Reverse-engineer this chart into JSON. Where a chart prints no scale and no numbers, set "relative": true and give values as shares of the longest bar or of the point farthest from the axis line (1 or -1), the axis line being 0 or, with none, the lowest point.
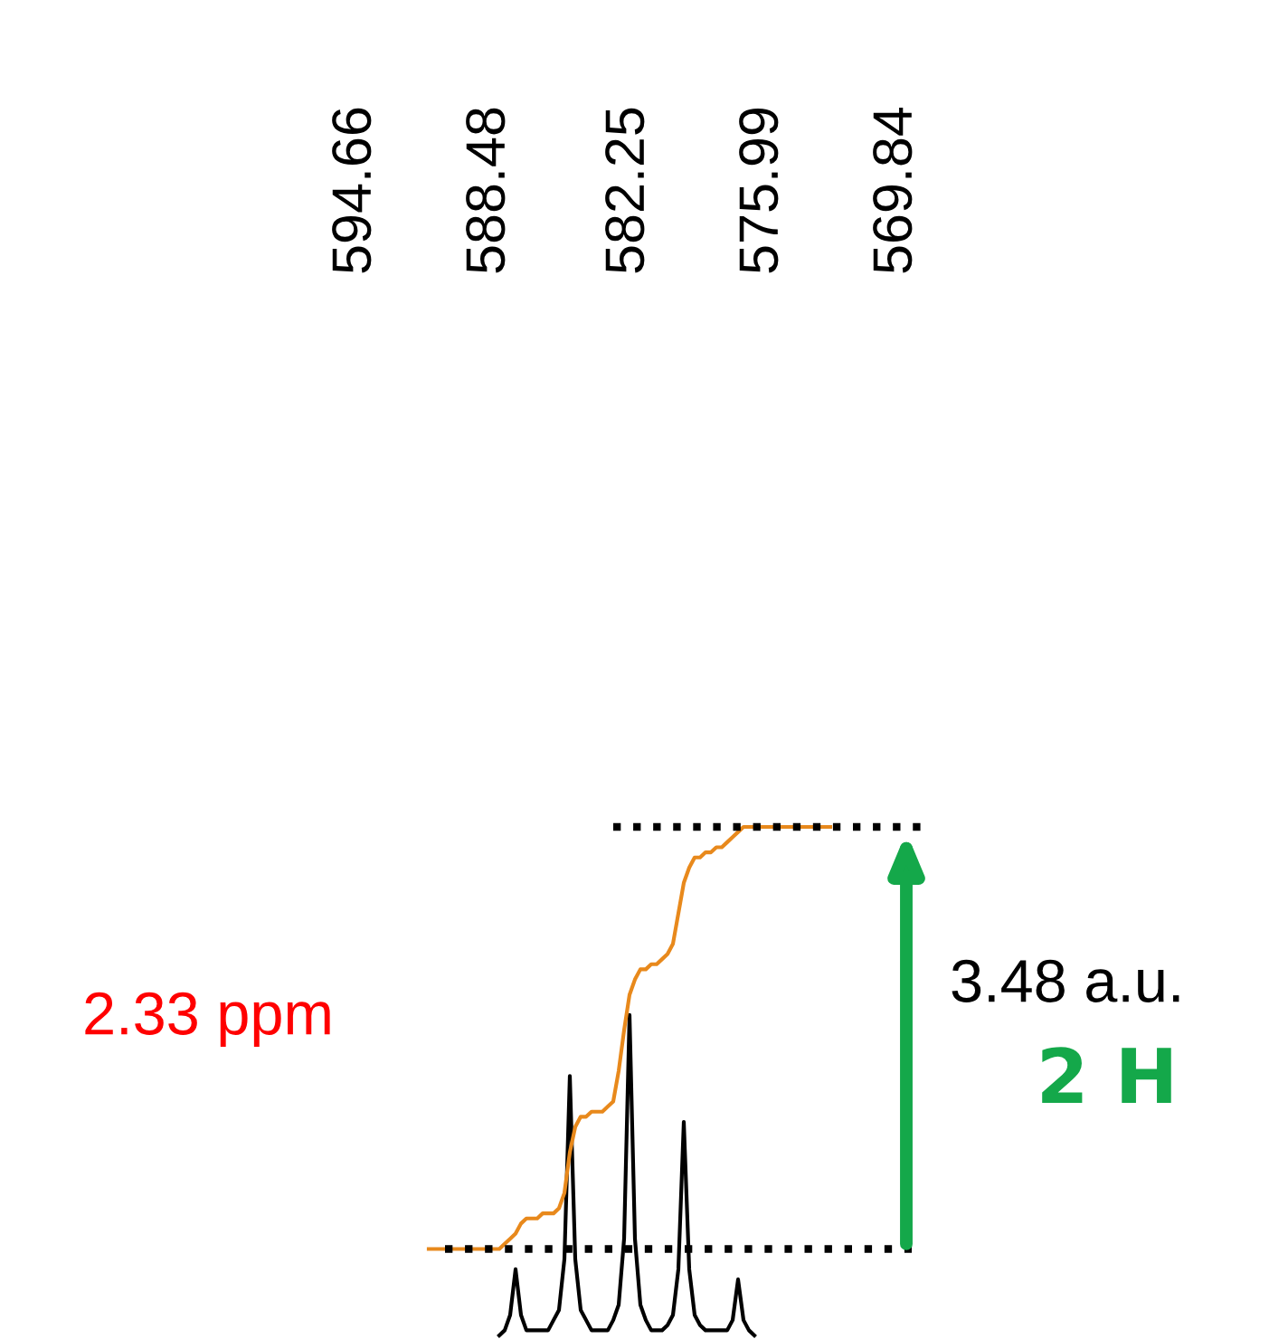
{
  "chart_data": {
    "type": "line",
    "relative": true,
    "categories": [
      null,
      null,
      null,
      null,
      null,
      null,
      null,
      null,
      null,
      null,
      null,
      null,
      null,
      null,
      null,
      null,
      null,
      null,
      null,
      null,
      null,
      null,
      null,
      null,
      null,
      null,
      null,
      null,
      null,
      null,
      null,
      null,
      null,
      null,
      null,
      null,
      null,
      null,
      null,
      null,
      null,
      null,
      null,
      null,
      null,
      null,
      null,
      null,
      null,
      null,
      null,
      null,
      null,
      null,
      null,
      null,
      null,
      null,
      null,
      null,
      null,
      null,
      null,
      null,
      null,
      null,
      null,
      null,
      null,
      null,
      null,
      null,
      null,
      null,
      null,
      null,
      null,
      null,
      null,
      null,
      null,
      null,
      null,
      null,
      null,
      null,
      null,
      null,
      null,
      null,
      null,
      null,
      null
    ],
    "series": [
      {
        "color": "#000000",
        "values": [
          null,
          null,
          null,
          null,
          null,
          null,
          null,
          null,
          null,
          null,
          null,
          null,
          null,
          0,
          0.01,
          0.04,
          0.13,
          0.04,
          0.01,
          0.01,
          0.01,
          0.01,
          0.01,
          0.03,
          0.05,
          0.15,
          0.51,
          0.15,
          0.05,
          0.03,
          0.01,
          0.01,
          0.01,
          0.01,
          0.03,
          0.06,
          0.19,
          0.63,
          0.19,
          0.06,
          0.03,
          0.01,
          0.01,
          0.01,
          0.02,
          0.04,
          0.13,
          0.42,
          0.13,
          0.04,
          0.02,
          0.01,
          0.01,
          0.01,
          0.01,
          0.01,
          0.03,
          0.11,
          0.03,
          0.01,
          0,
          null,
          null,
          null,
          null,
          null,
          null,
          null,
          null,
          null,
          null,
          null,
          null,
          null,
          null,
          null,
          null,
          null,
          null,
          null,
          null,
          null,
          null,
          null,
          null,
          null,
          null,
          null,
          null,
          null,
          null,
          null,
          null
        ]
      },
      {
        "color": "#e8891c",
        "values": [
          0.17,
          0.17,
          0.17,
          0.17,
          0.17,
          0.17,
          0.17,
          0.17,
          0.17,
          0.17,
          0.17,
          0.17,
          0.17,
          0.17,
          0.18,
          0.19,
          0.2,
          0.22,
          0.23,
          0.23,
          0.23,
          0.24,
          0.24,
          0.24,
          0.25,
          0.28,
          0.36,
          0.41,
          0.43,
          0.43,
          0.44,
          0.44,
          0.44,
          0.45,
          0.46,
          0.52,
          0.6,
          0.67,
          0.7,
          0.72,
          0.72,
          0.73,
          0.73,
          0.74,
          0.75,
          0.77,
          0.83,
          0.89,
          0.92,
          0.94,
          0.94,
          0.95,
          0.95,
          0.96,
          0.96,
          0.97,
          0.98,
          0.99,
          1,
          1,
          1,
          1,
          1,
          1,
          1,
          1,
          1,
          1,
          1,
          1,
          1,
          1,
          1,
          1,
          1,
          null,
          null,
          null,
          null,
          null,
          null,
          null,
          null,
          null,
          null,
          null,
          null,
          null,
          null,
          null,
          null,
          null,
          null
        ]
      },
      {
        "color": "#000000",
        "line_style": "dotted",
        "values": [
          null,
          null,
          null,
          0.17,
          0.17,
          0.17,
          0.17,
          0.17,
          0.17,
          0.17,
          0.17,
          0.17,
          0.17,
          0.17,
          0.17,
          0.17,
          0.17,
          0.17,
          0.17,
          0.17,
          0.17,
          0.17,
          0.17,
          0.17,
          0.17,
          0.17,
          0.17,
          0.17,
          0.17,
          0.17,
          0.17,
          0.17,
          0.17,
          0.17,
          0.17,
          0.17,
          0.17,
          0.17,
          0.17,
          0.17,
          0.17,
          0.17,
          0.17,
          0.17,
          0.17,
          0.17,
          0.17,
          0.17,
          0.17,
          0.17,
          0.17,
          0.17,
          0.17,
          0.17,
          0.17,
          0.17,
          0.17,
          0.17,
          0.17,
          0.17,
          0.17,
          0.17,
          0.17,
          0.17,
          0.17,
          0.17,
          0.17,
          0.17,
          0.17,
          0.17,
          0.17,
          0.17,
          0.17,
          0.17,
          0.17,
          0.17,
          0.17,
          0.17,
          0.17,
          0.17,
          0.17,
          0.17,
          0.17,
          0.17,
          0.17,
          0.17,
          0.17,
          0.17,
          0.17,
          0.17,
          null,
          null,
          null
        ]
      },
      {
        "color": "#000000",
        "line_style": "dotted",
        "values": [
          null,
          null,
          null,
          null,
          null,
          null,
          null,
          null,
          null,
          null,
          null,
          null,
          null,
          null,
          null,
          null,
          null,
          null,
          null,
          null,
          null,
          null,
          null,
          null,
          null,
          null,
          null,
          null,
          null,
          null,
          null,
          null,
          null,
          null,
          1,
          1,
          1,
          1,
          1,
          1,
          1,
          1,
          1,
          1,
          1,
          1,
          1,
          1,
          1,
          1,
          1,
          1,
          1,
          1,
          1,
          1,
          1,
          1,
          1,
          1,
          1,
          1,
          1,
          1,
          1,
          1,
          1,
          1,
          1,
          1,
          1,
          1,
          1,
          1,
          1,
          1,
          1,
          1,
          1,
          1,
          1,
          1,
          1,
          1,
          1,
          1,
          1,
          1,
          1,
          1,
          1,
          1,
          1
        ]
      }
    ],
    "annotations": [
      "594.66",
      "588.48",
      "582.25",
      "575.99",
      "569.84",
      "2.33 ppm",
      "3.48 a.u.",
      "2 H"
    ]
  }
}
